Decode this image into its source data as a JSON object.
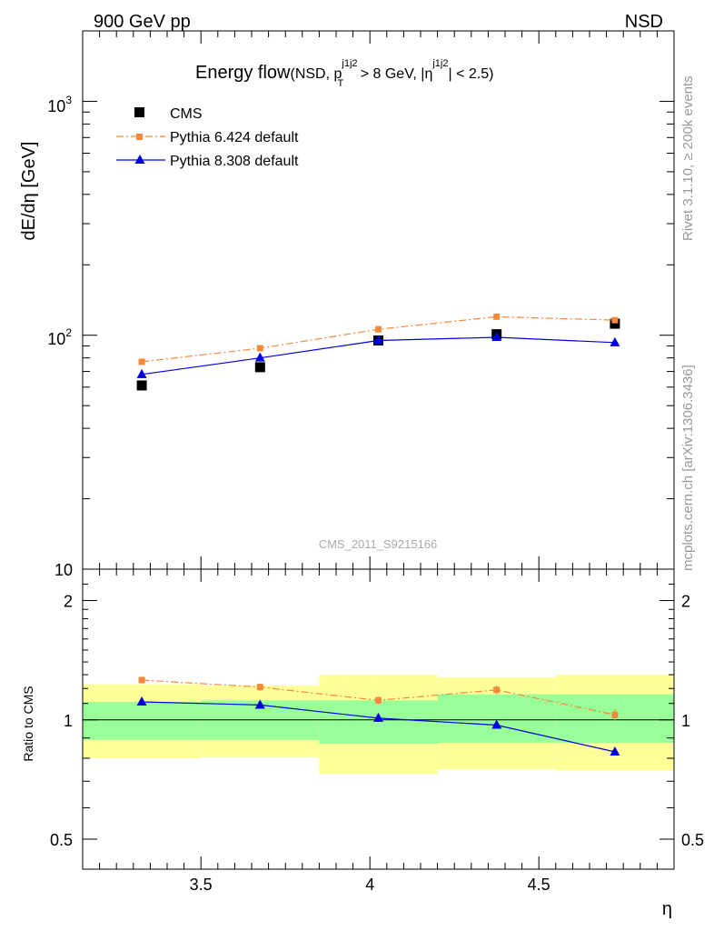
{
  "header": {
    "left": "900 GeV pp",
    "right": "NSD"
  },
  "side_labels": {
    "rivet": "Rivet 3.1.10, ≥ 200k events",
    "mcplots": "mcplots.cern.ch [arXiv:1306.3436]"
  },
  "analysis_id": "CMS_2011_S9215166",
  "chart_data": [
    {
      "type": "scatter",
      "title": "Energy flow",
      "title_cut": "(NSD, p_T^{j1j2} > 8 GeV, |η^{j1j2}| < 2.5)",
      "title_parts": {
        "main": "Energy flow",
        "pre": "(NSD, p",
        "sub_T": "T",
        "sup1": "j1j2",
        "mid": " > 8 GeV, |η",
        "sup2": "j1j2",
        "post": "| < 2.5)"
      },
      "ylabel": "dE/dη [GeV]",
      "xlabel": "η",
      "yscale": "log",
      "xlim": [
        3.15,
        4.9
      ],
      "ylim": [
        10,
        2000
      ],
      "ytick_labels": {
        "t10": "10",
        "t100_base": "10",
        "t100_exp": "2",
        "t1000_base": "10",
        "t1000_exp": "3"
      },
      "legend_position": "top-left",
      "series": [
        {
          "name": "CMS",
          "marker": "square",
          "color": "#000000",
          "x": [
            3.325,
            3.675,
            4.025,
            4.375,
            4.725
          ],
          "y": [
            61,
            73,
            95,
            101,
            112
          ]
        },
        {
          "name": "Pythia 6.424 default",
          "marker": "square-small",
          "line": "dash-dot",
          "color": "#f5883a",
          "x": [
            3.325,
            3.675,
            4.025,
            4.375,
            4.725
          ],
          "y": [
            77,
            88,
            106,
            120,
            116
          ]
        },
        {
          "name": "Pythia 8.308 default",
          "marker": "triangle",
          "line": "solid",
          "color": "#0000dd",
          "x": [
            3.325,
            3.675,
            4.025,
            4.375,
            4.725
          ],
          "y": [
            68,
            80,
            95,
            98,
            93
          ]
        }
      ]
    },
    {
      "type": "line",
      "ylabel": "Ratio to CMS",
      "xlabel": "η",
      "yscale": "log",
      "xlim": [
        3.15,
        4.9
      ],
      "ylim": [
        0.42,
        2.4
      ],
      "xticks": [
        3.5,
        4,
        4.5
      ],
      "xtick_labels": [
        "3.5",
        "4",
        "4.5"
      ],
      "yticks": [
        0.5,
        1,
        2
      ],
      "ytick_labels": [
        "0.5",
        "1",
        "2"
      ],
      "bands": {
        "bin_edges": [
          3.15,
          3.5,
          3.85,
          4.2,
          4.55,
          4.9
        ],
        "stat_color": "#99ff99",
        "total_color": "#ffff99",
        "stat_low": [
          0.89,
          0.89,
          0.87,
          0.875,
          0.875
        ],
        "stat_high": [
          1.11,
          1.12,
          1.12,
          1.16,
          1.16
        ],
        "total_low": [
          0.8,
          0.805,
          0.73,
          0.75,
          0.745
        ],
        "total_high": [
          1.23,
          1.22,
          1.3,
          1.28,
          1.3
        ]
      },
      "series": [
        {
          "name": "Pythia 6.424 default",
          "color": "#f5883a",
          "line": "dash-dot",
          "x": [
            3.325,
            3.675,
            4.025,
            4.375,
            4.725
          ],
          "y": [
            1.26,
            1.21,
            1.12,
            1.19,
            1.03
          ],
          "yerr": [
            0.025,
            0.025,
            0.025,
            0.03,
            0.035
          ]
        },
        {
          "name": "Pythia 8.308 default",
          "color": "#0000dd",
          "line": "solid",
          "x": [
            3.325,
            3.675,
            4.025,
            4.375,
            4.725
          ],
          "y": [
            1.11,
            1.09,
            1.01,
            0.97,
            0.83
          ]
        }
      ]
    }
  ]
}
